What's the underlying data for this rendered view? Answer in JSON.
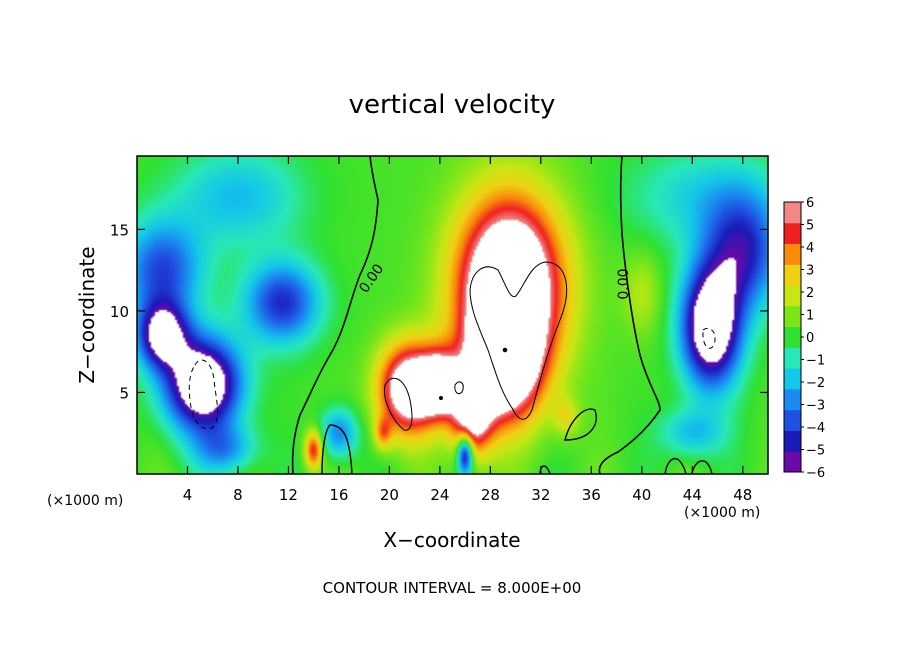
{
  "chart_data": {
    "type": "heatmap",
    "title": "vertical velocity",
    "xlabel": "X−coordinate",
    "ylabel": "Z−coordinate",
    "x_unit_left": "(×1000 m)",
    "x_unit_right": "(×1000 m)",
    "footer": "CONTOUR INTERVAL = 8.000E+00",
    "xlim": [
      0,
      50
    ],
    "ylim": [
      0,
      19.5
    ],
    "x_ticks": [
      4,
      8,
      12,
      16,
      20,
      24,
      28,
      32,
      36,
      40,
      44,
      48
    ],
    "x_tick_labels": [
      "4",
      "8",
      "12",
      "16",
      "20",
      "24",
      "28",
      "32",
      "36",
      "40",
      "44",
      "48"
    ],
    "y_ticks": [
      5,
      10,
      15
    ],
    "y_tick_labels": [
      "5",
      "10",
      "15"
    ],
    "colorbar": {
      "min": -6,
      "max": 6,
      "ticks": [
        6,
        5,
        4,
        3,
        2,
        1,
        0,
        -1,
        -2,
        -3,
        -4,
        -5,
        -6
      ],
      "tick_labels": [
        "6",
        "5",
        "4",
        "3",
        "2",
        "1",
        "0",
        "−1",
        "−2",
        "−3",
        "−4",
        "−5",
        "−6"
      ],
      "colors": [
        "#6a0aa8",
        "#1a1ab8",
        "#2050e0",
        "#1a8cf0",
        "#14c8e8",
        "#28e8b8",
        "#30e030",
        "#7ae61a",
        "#c8e614",
        "#f0d014",
        "#f88c0a",
        "#f02020",
        "#f08888"
      ]
    },
    "contour_labels": [
      "0.00",
      "0.00"
    ],
    "contour_interval": 8,
    "features": [
      {
        "kind": "updraft",
        "x": 29.5,
        "z": 11.5,
        "w": 8
      },
      {
        "kind": "updraft",
        "x": 21.5,
        "z": 5,
        "w": 7
      },
      {
        "kind": "updraft",
        "x": 26.5,
        "z": 5.5,
        "w": 6
      },
      {
        "kind": "downdraft",
        "x": 5.5,
        "z": 5,
        "w": -8
      },
      {
        "kind": "downdraft",
        "x": 45.5,
        "z": 8.5,
        "w": -8
      },
      {
        "kind": "downdraft",
        "x": 12,
        "z": 10,
        "w": -5
      },
      {
        "kind": "downdraft",
        "x": 1.5,
        "z": 10.5,
        "w": -5
      },
      {
        "kind": "downdraft",
        "x": 47.5,
        "z": 13.5,
        "w": -5
      }
    ]
  }
}
